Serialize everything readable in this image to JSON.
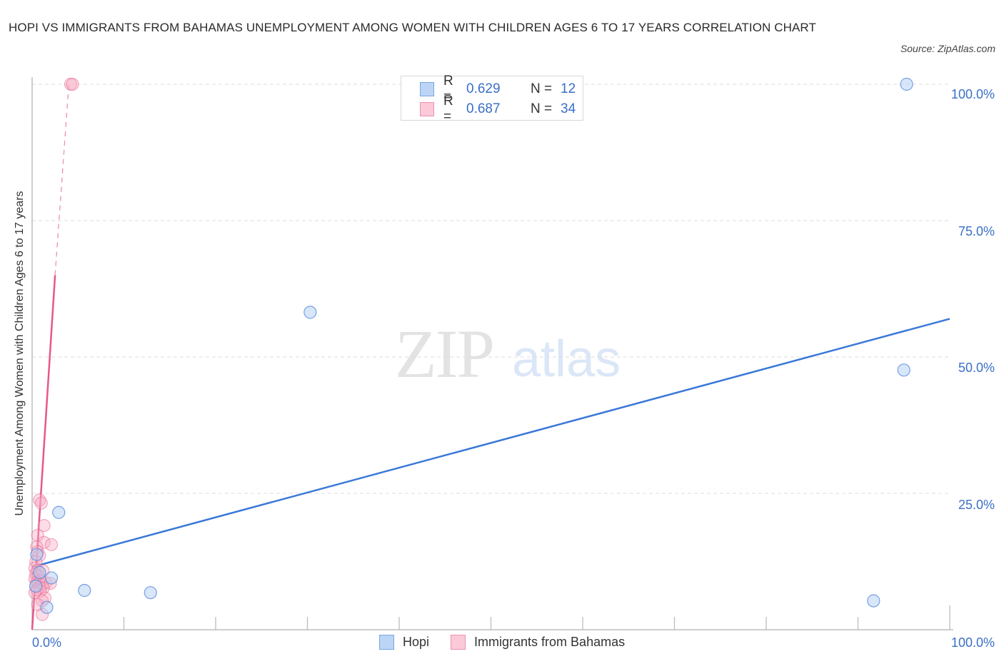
{
  "header": {
    "title": "HOPI VS IMMIGRANTS FROM BAHAMAS UNEMPLOYMENT AMONG WOMEN WITH CHILDREN AGES 6 TO 17 YEARS CORRELATION CHART",
    "source": "Source: ZipAtlas.com"
  },
  "watermark": {
    "zip": "ZIP",
    "atlas": "atlas"
  },
  "legend": {
    "rows": [
      {
        "r_label": "R =",
        "r_value": "0.629",
        "n_label": "N =",
        "n_value": "12",
        "color": "#a9c8f2",
        "border": "#7aa6e3"
      },
      {
        "r_label": "R =",
        "r_value": "0.687",
        "n_label": "N =",
        "n_value": "34",
        "color": "#f9bfd0",
        "border": "#ee92ae"
      }
    ]
  },
  "bottom_legend": {
    "items": [
      {
        "label": "Hopi"
      },
      {
        "label": "Immigrants from Bahamas"
      }
    ]
  },
  "axes": {
    "ylabel": "Unemployment Among Women with Children Ages 6 to 17 years",
    "yticks": [
      "100.0%",
      "75.0%",
      "50.0%",
      "25.0%"
    ],
    "xticks": [
      "0.0%",
      "100.0%"
    ]
  },
  "colors": {
    "hopi": "#3a78d8",
    "bahamas": "#e8578a",
    "tick_label": "#3a6fc7"
  },
  "chart_data": {
    "type": "scatter",
    "title": "HOPI VS IMMIGRANTS FROM BAHAMAS UNEMPLOYMENT AMONG WOMEN WITH CHILDREN AGES 6 TO 17 YEARS CORRELATION CHART",
    "xlabel": "",
    "ylabel": "Unemployment Among Women with Children Ages 6 to 17 years",
    "xlim": [
      0,
      100
    ],
    "ylim": [
      0,
      100
    ],
    "grid": true,
    "legend_position": "top-center and bottom",
    "series": [
      {
        "name": "Hopi",
        "R": 0.629,
        "N": 12,
        "points": [
          [
            2.9,
            21.5
          ],
          [
            2.1,
            9.5
          ],
          [
            5.7,
            7.2
          ],
          [
            12.9,
            6.8
          ],
          [
            30.3,
            58.2
          ],
          [
            1.6,
            4.1
          ],
          [
            0.8,
            10.5
          ],
          [
            0.5,
            13.8
          ],
          [
            0.4,
            8.0
          ],
          [
            95.3,
            100.0
          ],
          [
            95.0,
            47.6
          ],
          [
            91.7,
            5.3
          ]
        ],
        "trend": {
          "x0": 0,
          "y0": 11.5,
          "x1": 100,
          "y1": 57.0
        }
      },
      {
        "name": "Immigrants from Bahamas",
        "R": 0.687,
        "N": 34,
        "points": [
          [
            4.2,
            100.0
          ],
          [
            4.4,
            100.0
          ],
          [
            0.8,
            23.8
          ],
          [
            1.0,
            23.2
          ],
          [
            1.3,
            19.1
          ],
          [
            0.6,
            17.3
          ],
          [
            1.3,
            16.0
          ],
          [
            2.1,
            15.6
          ],
          [
            0.5,
            15.2
          ],
          [
            0.6,
            14.3
          ],
          [
            0.8,
            13.6
          ],
          [
            0.4,
            12.5
          ],
          [
            0.3,
            11.3
          ],
          [
            0.6,
            10.9
          ],
          [
            1.2,
            10.8
          ],
          [
            0.4,
            10.2
          ],
          [
            0.7,
            9.8
          ],
          [
            0.3,
            9.3
          ],
          [
            0.9,
            9.0
          ],
          [
            0.5,
            8.7
          ],
          [
            0.7,
            8.4
          ],
          [
            1.1,
            8.3
          ],
          [
            1.5,
            8.6
          ],
          [
            2.0,
            8.5
          ],
          [
            0.4,
            8.0
          ],
          [
            0.8,
            7.7
          ],
          [
            1.2,
            7.6
          ],
          [
            0.5,
            7.3
          ],
          [
            0.9,
            7.1
          ],
          [
            0.3,
            6.8
          ],
          [
            1.4,
            5.8
          ],
          [
            1.1,
            5.3
          ],
          [
            1.1,
            2.8
          ],
          [
            0.6,
            4.6
          ]
        ],
        "trend": {
          "x0": 0,
          "y0": 0,
          "x1": 2.5,
          "y1": 65.0,
          "dashed_extension_to": [
            4.0,
            100.0
          ]
        }
      }
    ]
  }
}
